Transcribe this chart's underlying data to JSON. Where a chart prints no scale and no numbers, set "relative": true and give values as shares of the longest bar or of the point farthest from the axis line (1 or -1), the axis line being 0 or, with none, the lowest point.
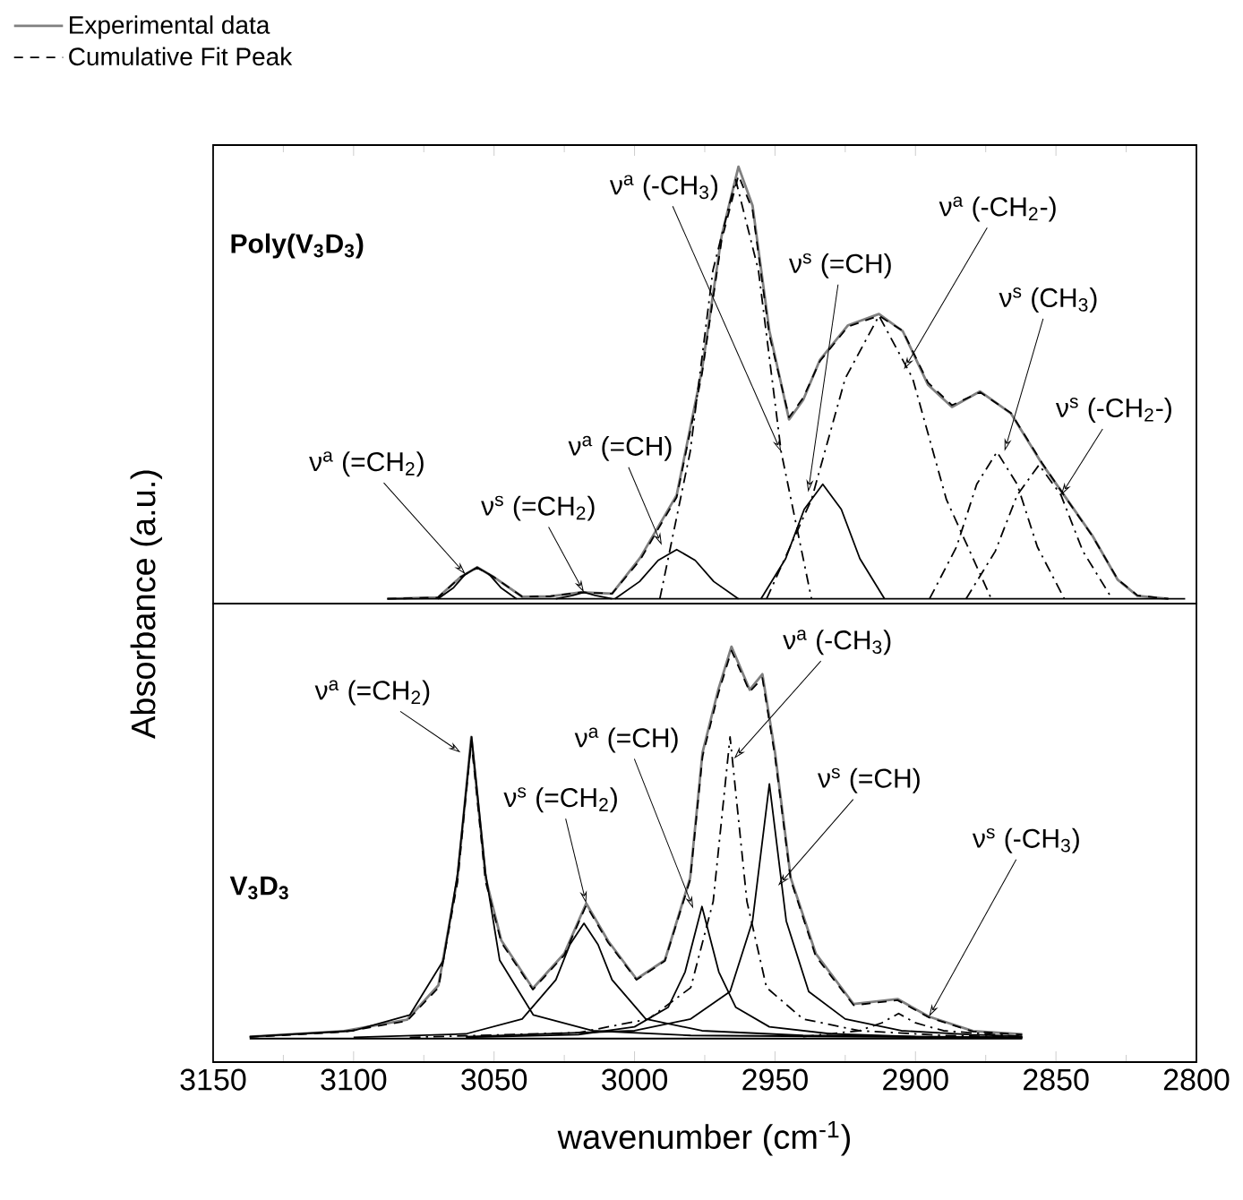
{
  "chart_data": [
    {
      "type": "line",
      "relative": true,
      "xlim": [
        3150,
        2800
      ],
      "xticks": [
        3150,
        3100,
        3050,
        3000,
        2950,
        2900,
        2850,
        2800
      ],
      "tick_labels": false,
      "legend": "top left",
      "series": [
        {
          "name": "Experimental data",
          "color": "#808080",
          "line_style": "solid",
          "x": [
            3088,
            3070,
            3062,
            3056,
            3050,
            3040,
            3030,
            3019,
            3008,
            2998,
            2985,
            2976,
            2969,
            2963,
            2958,
            2952,
            2945,
            2940,
            2934,
            2924,
            2913,
            2904.5,
            2895.5,
            2887,
            2877,
            2866,
            2855,
            2844,
            2837,
            2828,
            2821,
            2810
          ],
          "values": [
            0,
            0.003,
            0.05,
            0.073,
            0.05,
            0.005,
            0.006,
            0.015,
            0.012,
            0.095,
            0.24,
            0.53,
            0.84,
            1,
            0.91,
            0.62,
            0.415,
            0.46,
            0.553,
            0.633,
            0.659,
            0.619,
            0.495,
            0.444,
            0.48,
            0.429,
            0.313,
            0.211,
            0.146,
            0.044,
            0.007,
            0
          ]
        },
        {
          "name": "Cumulative Fit Peak",
          "color": "#000000",
          "line_style": "dashed",
          "x": [
            3088,
            3070,
            3062,
            3056,
            3050,
            3040,
            3030,
            3019,
            3008,
            2998,
            2985,
            2976,
            2969,
            2963,
            2958,
            2952,
            2945,
            2940,
            2934,
            2924,
            2913,
            2904.5,
            2895.5,
            2887,
            2877,
            2866,
            2855,
            2844,
            2837,
            2828,
            2821,
            2810
          ],
          "values": [
            0,
            0.003,
            0.05,
            0.072,
            0.05,
            0.005,
            0.006,
            0.015,
            0.012,
            0.09,
            0.235,
            0.52,
            0.83,
            0.98,
            0.9,
            0.61,
            0.42,
            0.465,
            0.55,
            0.63,
            0.655,
            0.62,
            0.5,
            0.448,
            0.478,
            0.43,
            0.315,
            0.21,
            0.145,
            0.045,
            0.008,
            0
          ]
        },
        {
          "color": "#000000",
          "line_style": "solid",
          "x": [
            3088,
            2804
          ],
          "values": [
            0,
            0
          ]
        },
        {
          "color": "#000000",
          "line_style": "solid",
          "x": [
            3070,
            3064.4,
            3060.2,
            3056,
            3051.8,
            3047.6,
            3042
          ],
          "values": [
            0,
            0.026,
            0.057,
            0.073,
            0.057,
            0.026,
            0
          ]
        },
        {
          "color": "#000000",
          "line_style": "solid",
          "x": [
            3028,
            3022,
            3018,
            3014,
            3008
          ],
          "values": [
            0,
            0.008,
            0.015,
            0.008,
            0
          ]
        },
        {
          "color": "#000000",
          "line_style": "solid",
          "x": [
            3007,
            2998.2,
            2991.6,
            2985,
            2978.4,
            2971.8,
            2963
          ],
          "values": [
            0,
            0.04,
            0.089,
            0.114,
            0.089,
            0.04,
            0
          ]
        },
        {
          "color": "#000000",
          "line_style": "dashdot",
          "x": [
            2991,
            2980.2,
            2972.1,
            2964,
            2955.9,
            2947.8,
            2937
          ],
          "values": [
            0,
            0.34,
            0.76,
            0.97,
            0.76,
            0.34,
            0
          ]
        },
        {
          "color": "#000000",
          "line_style": "solid",
          "x": [
            2955,
            2946.2,
            2939.6,
            2933,
            2926.4,
            2919.8,
            2911
          ],
          "values": [
            0,
            0.093,
            0.207,
            0.265,
            0.207,
            0.093,
            0
          ]
        },
        {
          "color": "#000000",
          "line_style": "dashdot",
          "x": [
            2953,
            2937,
            2925,
            2913,
            2901,
            2889,
            2873
          ],
          "values": [
            0,
            0.23,
            0.51,
            0.655,
            0.51,
            0.23,
            0
          ]
        },
        {
          "color": "#000000",
          "line_style": "dashdot",
          "x": [
            2895,
            2885.4,
            2878.2,
            2871,
            2863.8,
            2856.6,
            2847
          ],
          "values": [
            0,
            0.12,
            0.265,
            0.34,
            0.265,
            0.12,
            0
          ]
        },
        {
          "color": "#000000",
          "line_style": "dashdot",
          "x": [
            2882,
            2871.6,
            2863.8,
            2856,
            2848.2,
            2840.4,
            2830
          ],
          "values": [
            0,
            0.11,
            0.24,
            0.31,
            0.24,
            0.11,
            0
          ]
        }
      ],
      "annotations": [
        {
          "text": "ν$^{a}$ (=CH$_{2}$)",
          "x": 3060.2,
          "y": 0.057
        },
        {
          "text": "ν$^{s}$ (=CH$_{2}$)",
          "x": 3018,
          "y": 0.015
        },
        {
          "text": "ν$^{a}$ (=CH)",
          "x": 2990.3,
          "y": 0.124
        },
        {
          "text": "ν$^{a}$ (-CH$_{3}$)",
          "x": 2947.8,
          "y": 0.34
        },
        {
          "text": "ν$^{s}$ (=CH)",
          "x": 2938.2,
          "y": 0.247
        },
        {
          "text": "ν$^{a}$ (-CH$_{2}$-)",
          "x": 2904.1,
          "y": 0.531
        },
        {
          "text": "ν$^{s}$ (CH$_{3}$)",
          "x": 2868.3,
          "y": 0.342
        },
        {
          "text": "ν$^{s}$ (-CH$_{2}$-)",
          "x": 2848.2,
          "y": 0.24
        },
        "Poly(V$_{3}$D$_{3}$)"
      ]
    },
    {
      "type": "line",
      "relative": true,
      "xlim": [
        3150,
        2800
      ],
      "xticks": [
        3150,
        3100,
        3050,
        3000,
        2950,
        2900,
        2850,
        2800
      ],
      "tick_labels": "x",
      "xlabel": "wavenumber (cm$^{-1}$)",
      "ylabel": "Absorbance (a.u.)",
      "series": [
        {
          "color": "#808080",
          "line_style": "solid",
          "x": [
            3137,
            3103.4,
            3081,
            3069.8,
            3063,
            3058.1,
            3053,
            3047.4,
            3036.2,
            3025,
            3017.2,
            3009.4,
            2999.3,
            2989.2,
            2980.2,
            2975.8,
            2970.2,
            2965.5,
            2959,
            2954.5,
            2950,
            2944.4,
            2935.5,
            2922,
            2906.4,
            2895.2,
            2879.5,
            2862
          ],
          "values": [
            0.005,
            0.019,
            0.048,
            0.136,
            0.41,
            0.77,
            0.41,
            0.25,
            0.128,
            0.217,
            0.345,
            0.249,
            0.152,
            0.2,
            0.41,
            0.73,
            0.89,
            1,
            0.89,
            0.93,
            0.73,
            0.41,
            0.217,
            0.088,
            0.101,
            0.056,
            0.019,
            0.011
          ]
        },
        {
          "color": "#000000",
          "line_style": "dashed",
          "x": [
            3137,
            3103.4,
            3081,
            3069.8,
            3063,
            3058.1,
            3053,
            3047.4,
            3036.2,
            3025,
            3017.2,
            3009.4,
            2999.3,
            2989.2,
            2980.2,
            2975.8,
            2970.2,
            2965.5,
            2959,
            2954.5,
            2950,
            2944.4,
            2935.5,
            2922,
            2906.4,
            2895.2,
            2879.5,
            2862
          ],
          "values": [
            0.004,
            0.017,
            0.045,
            0.13,
            0.4,
            0.76,
            0.4,
            0.245,
            0.125,
            0.213,
            0.34,
            0.245,
            0.15,
            0.198,
            0.405,
            0.72,
            0.88,
            0.99,
            0.885,
            0.92,
            0.72,
            0.405,
            0.21,
            0.085,
            0.098,
            0.054,
            0.018,
            0.01
          ]
        },
        {
          "color": "#000000",
          "line_style": "solid",
          "x": [
            3137,
            2862
          ],
          "values": [
            0,
            0
          ]
        },
        {
          "color": "#000000",
          "line_style": "solid",
          "x": [
            3137,
            3100,
            3080,
            3068,
            3063,
            3058,
            3053,
            3048,
            3036,
            3015,
            2980,
            2862
          ],
          "values": [
            0.005,
            0.02,
            0.06,
            0.2,
            0.42,
            0.77,
            0.42,
            0.2,
            0.06,
            0.02,
            0.008,
            0.002
          ]
        },
        {
          "color": "#000000",
          "line_style": "solid",
          "x": [
            3100,
            3060,
            3040,
            3028,
            3023,
            3018,
            3013,
            3008,
            2996,
            2976,
            2940,
            2862
          ],
          "values": [
            0.003,
            0.012,
            0.05,
            0.15,
            0.24,
            0.294,
            0.24,
            0.15,
            0.05,
            0.02,
            0.008,
            0.003
          ]
        },
        {
          "color": "#000000",
          "line_style": "solid",
          "x": [
            3060,
            3020,
            3000,
            2988,
            2982,
            2976,
            2970,
            2964,
            2952,
            2930,
            2900,
            2862
          ],
          "values": [
            0.003,
            0.01,
            0.03,
            0.08,
            0.17,
            0.337,
            0.17,
            0.08,
            0.03,
            0.012,
            0.005,
            0.003
          ]
        },
        {
          "color": "#000000",
          "line_style": "dashdot",
          "x": [
            3080,
            3020,
            2995,
            2980,
            2972,
            2966,
            2960,
            2953,
            2940,
            2920,
            2890,
            2862
          ],
          "values": [
            0.003,
            0.015,
            0.05,
            0.13,
            0.35,
            0.77,
            0.35,
            0.13,
            0.05,
            0.02,
            0.008,
            0.004
          ]
        },
        {
          "color": "#000000",
          "line_style": "solid",
          "x": [
            3060,
            3000,
            2980,
            2966,
            2958,
            2952,
            2946,
            2938,
            2925,
            2905,
            2880,
            2862
          ],
          "values": [
            0.005,
            0.02,
            0.05,
            0.12,
            0.3,
            0.65,
            0.3,
            0.12,
            0.05,
            0.02,
            0.01,
            0.006
          ]
        },
        {
          "color": "#000000",
          "line_style": "dashdot",
          "x": [
            2940,
            2920,
            2912,
            2906,
            2900,
            2890,
            2862
          ],
          "values": [
            0.005,
            0.02,
            0.04,
            0.064,
            0.04,
            0.02,
            0.005
          ]
        }
      ],
      "annotations": [
        {
          "text": "ν$^{a}$ (=CH$_{2}$)",
          "x": 3061.9,
          "y": 0.73
        },
        {
          "text": "ν$^{s}$ (=CH$_{2}$)",
          "x": 3017.2,
          "y": 0.345
        },
        {
          "text": "ν$^{a}$ (=CH)",
          "x": 2979.1,
          "y": 0.332
        },
        {
          "text": "ν$^{a}$ (-CH$_{3}$)",
          "x": 2964.6,
          "y": 0.714
        },
        {
          "text": "ν$^{s}$ (=CH)",
          "x": 2948.9,
          "y": 0.39
        },
        {
          "text": "ν$^{s}$ (-CH$_{3}$)",
          "x": 2895.2,
          "y": 0.056
        },
        "V$_{3}$D$_{3}$"
      ]
    }
  ]
}
